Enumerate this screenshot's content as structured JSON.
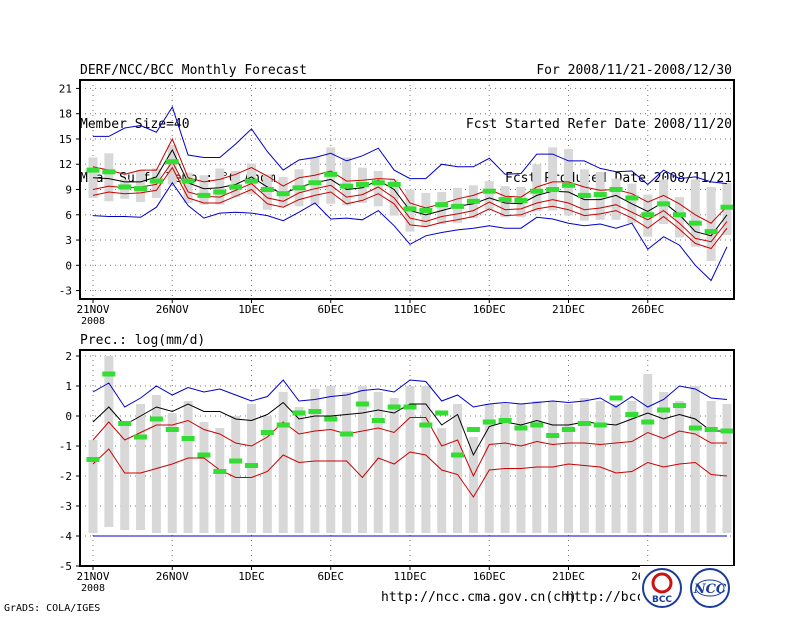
{
  "header": {
    "left": [
      "DERF/NCC/BCC Monthly Forecast",
      "Member Size=40",
      "Mean Surf. Temp.: °C Anom."
    ],
    "right": [
      "For 2008/11/21-2008/12/30",
      "Fcst Started Refer Date 2008/11/20",
      "Fcst Produced Date 2008/11/21"
    ]
  },
  "footer": {
    "credit": "GrADS: COLA/IGES",
    "url1": "http://ncc.cma.gov.cn(ch)",
    "url2": "http://bcc.",
    "logo1": "BCC",
    "logo2": "NCC"
  },
  "colors": {
    "envelope": "#0000cc",
    "spread": "#cc0000",
    "mean": "#000000",
    "observed": "#33dd33",
    "box": "#d8d8d8"
  },
  "chart_data": [
    {
      "type": "line",
      "title": "Mean Surf. Temp.: °C Anom.",
      "ylim": [
        -4,
        22
      ],
      "yticks": [
        -3,
        0,
        3,
        6,
        9,
        12,
        15,
        18,
        21
      ],
      "xticks": [
        {
          "i": 0,
          "label": "21NOV",
          "sub": "2008"
        },
        {
          "i": 5,
          "label": "26NOV"
        },
        {
          "i": 10,
          "label": "1DEC"
        },
        {
          "i": 15,
          "label": "6DEC"
        },
        {
          "i": 20,
          "label": "11DEC"
        },
        {
          "i": 25,
          "label": "16DEC"
        },
        {
          "i": 30,
          "label": "21DEC"
        },
        {
          "i": 35,
          "label": "26DEC"
        }
      ],
      "grid": true,
      "series": [
        {
          "name": "max",
          "style": "envelope",
          "values": [
            15.3,
            15.3,
            16.3,
            16.6,
            15.8,
            18.8,
            13.1,
            12.8,
            12.8,
            14.4,
            16.2,
            13.5,
            11.3,
            12.5,
            12.8,
            13.3,
            12.4,
            13.0,
            13.9,
            11.3,
            10.3,
            10.3,
            12.0,
            11.7,
            11.7,
            12.7,
            10.8,
            10.9,
            13.2,
            13.2,
            12.4,
            12.4,
            11.5,
            11.1,
            11.2,
            9.6,
            11.3,
            10.3,
            10.5,
            9.9,
            9.7
          ]
        },
        {
          "name": "upper",
          "style": "spread",
          "values": [
            11.7,
            11.3,
            10.8,
            11.3,
            11.3,
            15.0,
            10.4,
            9.9,
            10.2,
            10.8,
            11.6,
            10.6,
            9.4,
            10.4,
            10.7,
            11.2,
            10.0,
            10.1,
            10.3,
            10.2,
            7.4,
            6.8,
            7.3,
            7.9,
            8.3,
            9.0,
            8.2,
            8.1,
            9.3,
            9.9,
            9.9,
            9.3,
            8.9,
            9.0,
            8.5,
            7.5,
            8.3,
            7.3,
            6.0,
            5.0,
            7.0
          ]
        },
        {
          "name": "mean",
          "style": "mean",
          "values": [
            10.4,
            10.3,
            9.9,
            9.9,
            10.5,
            13.7,
            9.8,
            9.1,
            9.2,
            9.6,
            10.5,
            9.3,
            8.5,
            9.3,
            9.8,
            10.2,
            9.0,
            9.2,
            10.1,
            9.0,
            6.5,
            6.0,
            6.5,
            7.0,
            7.3,
            8.0,
            7.4,
            7.3,
            8.3,
            8.8,
            8.7,
            7.8,
            7.8,
            8.3,
            7.3,
            6.4,
            7.5,
            6.0,
            4.0,
            3.5,
            6.0
          ]
        },
        {
          "name": "lower",
          "style": "spread",
          "values": [
            9.0,
            9.4,
            9.2,
            9.3,
            9.6,
            12.3,
            8.7,
            8.2,
            8.1,
            8.9,
            9.7,
            8.0,
            7.6,
            8.6,
            9.1,
            9.5,
            8.1,
            8.4,
            9.3,
            8.0,
            5.6,
            5.2,
            5.8,
            6.1,
            6.5,
            7.5,
            6.6,
            6.7,
            7.4,
            7.8,
            7.4,
            6.6,
            6.8,
            7.2,
            6.3,
            5.4,
            6.5,
            5.0,
            3.2,
            2.8,
            5.2
          ]
        },
        {
          "name": "low",
          "style": "spread",
          "values": [
            8.3,
            8.7,
            8.5,
            8.6,
            8.9,
            11.6,
            8.0,
            7.4,
            7.4,
            8.2,
            9.0,
            7.3,
            6.9,
            7.8,
            8.3,
            8.7,
            7.3,
            7.7,
            8.5,
            7.3,
            4.8,
            4.6,
            5.1,
            5.4,
            5.8,
            6.7,
            5.9,
            6.0,
            6.7,
            7.0,
            6.6,
            5.9,
            6.1,
            6.5,
            5.6,
            4.4,
            5.8,
            4.3,
            2.6,
            2.0,
            4.4
          ]
        },
        {
          "name": "min",
          "style": "envelope",
          "values": [
            5.9,
            5.8,
            5.8,
            5.7,
            6.9,
            9.8,
            7.1,
            5.6,
            6.2,
            6.3,
            6.2,
            5.9,
            5.3,
            6.3,
            7.4,
            5.5,
            5.6,
            5.4,
            6.5,
            4.7,
            2.5,
            3.5,
            3.9,
            4.2,
            4.4,
            4.7,
            4.4,
            4.4,
            5.7,
            5.5,
            5.0,
            4.7,
            4.9,
            4.4,
            5.0,
            1.9,
            3.4,
            2.4,
            0.0,
            -1.8,
            2.2
          ]
        }
      ],
      "boxes_upper": [
        12.8,
        13.3,
        10.2,
        11.3,
        11.5,
        14.3,
        11.0,
        10.7,
        11.5,
        11.2,
        12.1,
        10.8,
        10.5,
        11.4,
        12.8,
        14.0,
        12.8,
        11.6,
        11.2,
        10.2,
        9.0,
        8.6,
        8.7,
        9.2,
        9.5,
        10.0,
        9.4,
        9.3,
        12.0,
        14.0,
        13.8,
        11.4,
        11.1,
        10.3,
        9.7,
        8.4,
        10.2,
        8.1,
        10.2,
        9.3,
        9.8
      ],
      "boxes_lower": [
        8.0,
        7.6,
        7.9,
        7.5,
        8.0,
        9.6,
        7.4,
        7.2,
        7.2,
        8.1,
        8.4,
        6.6,
        7.0,
        7.0,
        7.2,
        7.3,
        7.1,
        7.4,
        7.0,
        5.9,
        4.0,
        4.6,
        4.9,
        5.0,
        5.6,
        6.6,
        5.7,
        5.7,
        6.4,
        6.5,
        5.9,
        5.3,
        5.4,
        5.4,
        5.0,
        3.4,
        4.9,
        3.3,
        2.2,
        0.5,
        3.6
      ],
      "observed": [
        11.3,
        11.1,
        9.3,
        9.1,
        10.0,
        12.3,
        10.0,
        8.3,
        8.7,
        9.3,
        10.0,
        9.0,
        8.5,
        9.2,
        9.8,
        10.8,
        9.4,
        9.6,
        9.8,
        9.6,
        6.7,
        6.5,
        7.2,
        7.0,
        7.6,
        8.8,
        7.8,
        7.7,
        8.8,
        9.0,
        9.5,
        8.3,
        8.4,
        9.0,
        8.0,
        6.0,
        7.3,
        6.0,
        5.0,
        4.0,
        6.9
      ]
    },
    {
      "type": "line",
      "title": "Prec.: log(mm/d)",
      "ylim": [
        -5,
        2.2
      ],
      "yticks": [
        -5,
        -4,
        -3,
        -2,
        -1,
        0,
        1,
        2
      ],
      "xticks": [
        {
          "i": 0,
          "label": "21NOV",
          "sub": "2008"
        },
        {
          "i": 5,
          "label": "26NOV"
        },
        {
          "i": 10,
          "label": "1DEC"
        },
        {
          "i": 15,
          "label": "6DEC"
        },
        {
          "i": 20,
          "label": "11DEC"
        },
        {
          "i": 25,
          "label": "16DEC"
        },
        {
          "i": 30,
          "label": "21DEC"
        },
        {
          "i": 35,
          "label": "26DEC"
        }
      ],
      "grid": true,
      "series": [
        {
          "name": "max",
          "style": "envelope",
          "values": [
            0.8,
            1.1,
            0.3,
            0.6,
            1.0,
            0.7,
            0.95,
            0.8,
            0.9,
            0.7,
            0.5,
            0.65,
            1.2,
            0.5,
            0.55,
            0.65,
            0.7,
            0.85,
            0.9,
            0.8,
            1.2,
            1.15,
            0.5,
            0.7,
            0.3,
            0.4,
            0.45,
            0.4,
            0.45,
            0.5,
            0.45,
            0.5,
            0.6,
            0.3,
            0.65,
            0.3,
            0.55,
            1.0,
            0.9,
            0.6,
            0.55
          ]
        },
        {
          "name": "mean",
          "style": "mean",
          "values": [
            -0.2,
            0.3,
            -0.3,
            0.0,
            0.3,
            0.15,
            0.4,
            0.15,
            0.15,
            -0.1,
            -0.15,
            0.05,
            0.45,
            -0.1,
            0.0,
            0.0,
            0.05,
            0.1,
            0.2,
            0.1,
            0.4,
            0.4,
            -0.3,
            0.05,
            -1.3,
            -0.35,
            -0.2,
            -0.3,
            -0.15,
            -0.3,
            -0.3,
            -0.2,
            -0.25,
            -0.3,
            -0.1,
            0.1,
            -0.1,
            0.05,
            -0.1,
            -0.5,
            -0.5
          ]
        },
        {
          "name": "upper",
          "style": "spread",
          "values": [
            -0.8,
            -0.2,
            -0.8,
            -0.55,
            -0.3,
            -0.3,
            -0.15,
            -0.45,
            -0.6,
            -0.9,
            -1.0,
            -0.7,
            -0.2,
            -0.6,
            -0.5,
            -0.45,
            -0.6,
            -0.5,
            -0.4,
            -0.55,
            -0.05,
            -0.05,
            -1.0,
            -0.8,
            -2.0,
            -0.95,
            -0.9,
            -1.0,
            -0.85,
            -0.95,
            -0.9,
            -0.9,
            -0.95,
            -0.9,
            -0.85,
            -0.55,
            -0.75,
            -0.5,
            -0.6,
            -0.9,
            -0.9
          ]
        },
        {
          "name": "lower",
          "style": "spread",
          "values": [
            -1.6,
            -1.1,
            -1.9,
            -1.9,
            -1.75,
            -1.6,
            -1.4,
            -1.4,
            -1.8,
            -2.05,
            -2.05,
            -1.85,
            -1.3,
            -1.55,
            -1.5,
            -1.5,
            -1.5,
            -2.05,
            -1.4,
            -1.6,
            -1.2,
            -1.3,
            -1.8,
            -1.95,
            -2.7,
            -1.8,
            -1.75,
            -1.75,
            -1.7,
            -1.7,
            -1.6,
            -1.65,
            -1.7,
            -1.9,
            -1.85,
            -1.55,
            -1.7,
            -1.6,
            -1.55,
            -1.95,
            -2.0
          ]
        },
        {
          "name": "min",
          "style": "envelope",
          "values": [
            -4.0,
            -4.0,
            -4.0,
            -4.0,
            -4.0,
            -4.0,
            -4.0,
            -4.0,
            -4.0,
            -4.0,
            -4.0,
            -4.0,
            -4.0,
            -4.0,
            -4.0,
            -4.0,
            -4.0,
            -4.0,
            -4.0,
            -4.0,
            -4.0,
            -4.0,
            -4.0,
            -4.0,
            -4.0,
            -4.0,
            -4.0,
            -4.0,
            -4.0,
            -4.0,
            -4.0,
            -4.0,
            -4.0,
            -4.0,
            -4.0,
            -4.0,
            -4.0,
            -4.0,
            -4.0,
            -4.0,
            -4.0
          ]
        }
      ],
      "boxes_upper": [
        -0.8,
        2.0,
        -0.2,
        0.4,
        0.7,
        0.1,
        0.5,
        -0.2,
        -0.4,
        0.0,
        0.4,
        0.0,
        0.8,
        0.3,
        0.9,
        1.0,
        0.8,
        1.0,
        0.8,
        0.6,
        1.0,
        1.0,
        -0.4,
        0.4,
        -0.7,
        0.4,
        0.4,
        0.4,
        0.5,
        0.5,
        0.4,
        0.6,
        0.5,
        0.4,
        0.5,
        1.4,
        0.8,
        0.5,
        1.0,
        0.5,
        0.4
      ],
      "boxes_lower": [
        -3.9,
        -3.7,
        -3.8,
        -3.8,
        -3.9,
        -3.9,
        -3.9,
        -3.9,
        -3.9,
        -3.9,
        -3.9,
        -3.9,
        -3.9,
        -3.9,
        -3.9,
        -3.9,
        -3.9,
        -3.9,
        -3.9,
        -3.9,
        -3.9,
        -3.9,
        -3.9,
        -3.9,
        -3.9,
        -3.9,
        -3.9,
        -3.9,
        -3.9,
        -3.9,
        -3.9,
        -3.9,
        -3.9,
        -3.9,
        -3.9,
        -3.9,
        -3.9,
        -3.9,
        -3.9,
        -3.9,
        -3.9
      ],
      "observed": [
        -1.45,
        1.4,
        -0.25,
        -0.7,
        -0.1,
        -0.45,
        -0.75,
        -1.3,
        -1.85,
        -1.5,
        -1.65,
        -0.55,
        -0.3,
        0.1,
        0.15,
        -0.1,
        -0.6,
        0.4,
        -0.15,
        0.3,
        0.3,
        -0.3,
        0.1,
        -1.3,
        -0.45,
        -0.2,
        -0.15,
        -0.4,
        -0.3,
        -0.65,
        -0.45,
        -0.25,
        -0.3,
        0.6,
        0.05,
        -0.2,
        0.2,
        0.35,
        -0.4,
        -0.45,
        -0.5
      ]
    }
  ]
}
